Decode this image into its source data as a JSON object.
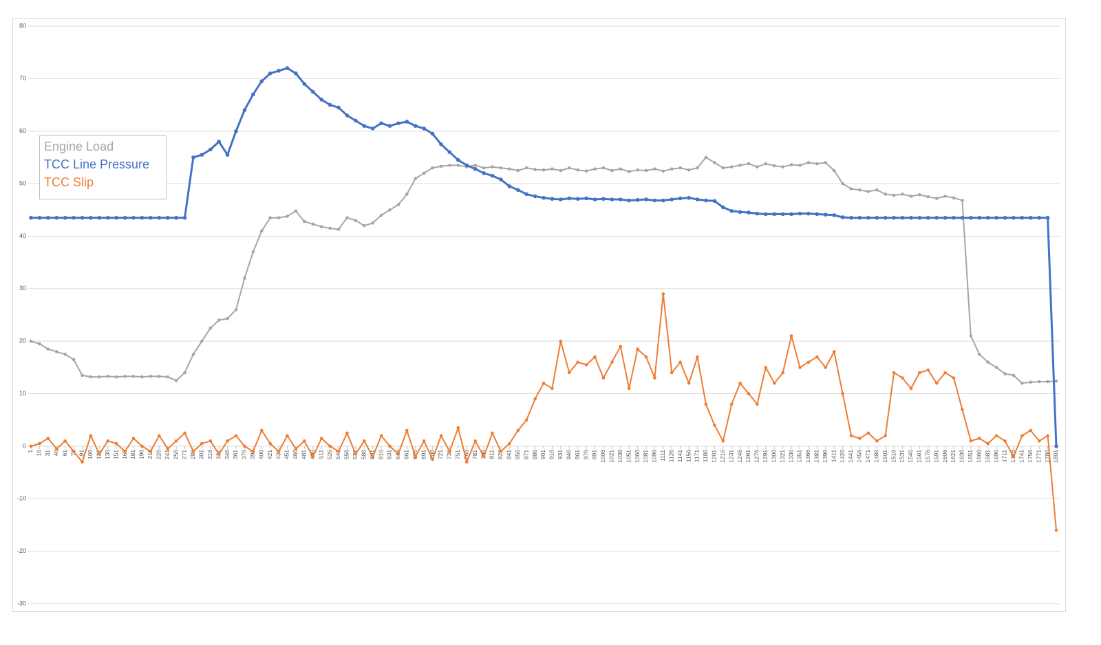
{
  "chart_data": {
    "type": "line",
    "x": [
      1,
      16,
      31,
      46,
      61,
      76,
      91,
      106,
      121,
      136,
      151,
      166,
      181,
      196,
      211,
      226,
      241,
      256,
      271,
      286,
      301,
      316,
      331,
      346,
      361,
      376,
      391,
      406,
      421,
      436,
      451,
      466,
      481,
      496,
      511,
      526,
      541,
      556,
      571,
      586,
      601,
      616,
      631,
      646,
      661,
      676,
      691,
      706,
      721,
      736,
      751,
      766,
      781,
      796,
      811,
      826,
      841,
      856,
      871,
      886,
      901,
      916,
      931,
      946,
      961,
      976,
      991,
      1006,
      1021,
      1036,
      1051,
      1066,
      1081,
      1096,
      1111,
      1126,
      1141,
      1156,
      1171,
      1186,
      1201,
      1216,
      1231,
      1246,
      1261,
      1276,
      1291,
      1306,
      1321,
      1336,
      1351,
      1366,
      1381,
      1396,
      1411,
      1426,
      1441,
      1456,
      1471,
      1486,
      1501,
      1516,
      1531,
      1546,
      1561,
      1576,
      1591,
      1606,
      1621,
      1636,
      1651,
      1666,
      1681,
      1696,
      1711,
      1726,
      1741,
      1756,
      1771,
      1786,
      1801
    ],
    "xticks": [
      1,
      16,
      31,
      46,
      61,
      76,
      91,
      106,
      121,
      136,
      151,
      166,
      181,
      196,
      211,
      226,
      241,
      256,
      271,
      286,
      301,
      316,
      331,
      346,
      361,
      376,
      391,
      406,
      421,
      436,
      451,
      466,
      481,
      496,
      511,
      526,
      541,
      556,
      571,
      586,
      601,
      616,
      631,
      646,
      661,
      676,
      691,
      706,
      721,
      736,
      751,
      766,
      781,
      796,
      811,
      826,
      841,
      856,
      871,
      886,
      901,
      916,
      931,
      946,
      961,
      976,
      991,
      1006,
      1021,
      1036,
      1051,
      1066,
      1081,
      1096,
      1111,
      1126,
      1141,
      1156,
      1171,
      1186,
      1201,
      1216,
      1231,
      1246,
      1261,
      1276,
      1291,
      1306,
      1321,
      1336,
      1351,
      1366,
      1381,
      1396,
      1411,
      1426,
      1441,
      1456,
      1471,
      1486,
      1501,
      1516,
      1531,
      1546,
      1561,
      1576,
      1591,
      1606,
      1621,
      1636,
      1651,
      1666,
      1681,
      1696,
      1711,
      1726,
      1741,
      1756,
      1771,
      1786,
      1801
    ],
    "xlim": [
      1,
      1801
    ],
    "ylim": [
      -30,
      80
    ],
    "yticks": [
      -30,
      -20,
      -10,
      0,
      10,
      20,
      30,
      40,
      50,
      60,
      70,
      80
    ],
    "grid": true,
    "legend": "upper left",
    "series": [
      {
        "name": "Engine Load",
        "color": "#a5a5a5",
        "values": [
          20,
          19.5,
          18.5,
          18,
          17.5,
          16.5,
          13.5,
          13.2,
          13.2,
          13.3,
          13.2,
          13.3,
          13.3,
          13.2,
          13.3,
          13.3,
          13.2,
          12.5,
          14,
          17.5,
          20,
          22.5,
          24,
          24.3,
          26,
          32,
          37,
          41,
          43.5,
          43.5,
          43.8,
          44.8,
          42.8,
          42.3,
          41.8,
          41.5,
          41.3,
          43.5,
          43,
          42,
          42.5,
          44,
          45,
          46,
          48,
          51,
          52,
          53,
          53.3,
          53.5,
          53.5,
          53.2,
          53.5,
          53,
          53.2,
          53,
          52.8,
          52.5,
          53,
          52.7,
          52.6,
          52.8,
          52.5,
          53,
          52.6,
          52.4,
          52.8,
          53,
          52.5,
          52.8,
          52.3,
          52.6,
          52.5,
          52.8,
          52.4,
          52.8,
          53,
          52.6,
          53,
          55,
          54,
          53,
          53.2,
          53.5,
          53.8,
          53.2,
          53.8,
          53.4,
          53.2,
          53.6,
          53.5,
          54,
          53.8,
          54,
          52.5,
          50,
          49,
          48.8,
          48.5,
          48.8,
          48,
          47.8,
          48,
          47.6,
          47.9,
          47.5,
          47.2,
          47.6,
          47.3,
          46.8,
          21,
          17.5,
          16,
          15,
          13.8,
          13.5,
          12,
          12.2,
          12.3,
          12.3,
          12.4
        ]
      },
      {
        "name": "TCC Line Pressure",
        "color": "#4472c4",
        "values": [
          43.5,
          43.5,
          43.5,
          43.5,
          43.5,
          43.5,
          43.5,
          43.5,
          43.5,
          43.5,
          43.5,
          43.5,
          43.5,
          43.5,
          43.5,
          43.5,
          43.5,
          43.5,
          43.5,
          55,
          55.5,
          56.5,
          58,
          55.5,
          60,
          64,
          67,
          69.5,
          71,
          71.5,
          72,
          71,
          69,
          67.5,
          66,
          65,
          64.5,
          63,
          62,
          61,
          60.5,
          61.5,
          61,
          61.5,
          61.8,
          61,
          60.5,
          59.5,
          57.5,
          56,
          54.5,
          53.5,
          52.8,
          52,
          51.5,
          50.8,
          49.5,
          48.8,
          48,
          47.6,
          47.3,
          47.1,
          47,
          47.2,
          47.1,
          47.2,
          47,
          47.1,
          47,
          47,
          46.8,
          46.9,
          47,
          46.8,
          46.8,
          47,
          47.2,
          47.3,
          47,
          46.8,
          46.7,
          45.5,
          44.8,
          44.6,
          44.5,
          44.3,
          44.2,
          44.2,
          44.2,
          44.2,
          44.3,
          44.3,
          44.2,
          44.1,
          44,
          43.6,
          43.5,
          43.5,
          43.5,
          43.5,
          43.5,
          43.5,
          43.5,
          43.5,
          43.5,
          43.5,
          43.5,
          43.5,
          43.5,
          43.5,
          43.5,
          43.5,
          43.5,
          43.5,
          43.5,
          43.5,
          43.5,
          43.5,
          43.5,
          43.5,
          0
        ]
      },
      {
        "name": "TCC Slip",
        "color": "#ed7d31",
        "values": [
          0,
          0.5,
          1.5,
          -0.5,
          1,
          -1,
          -3,
          2,
          -1.5,
          1,
          0.5,
          -1,
          1.5,
          0,
          -1,
          2,
          -0.5,
          1,
          2.5,
          -1,
          0.5,
          1,
          -1.5,
          1,
          2,
          0,
          -1,
          3,
          0.5,
          -1,
          2,
          -0.5,
          1,
          -2,
          1.5,
          0,
          -1,
          2.5,
          -1.5,
          1,
          -2,
          2,
          0,
          -1.5,
          3,
          -2,
          1,
          -2.5,
          2,
          -1,
          3.5,
          -3,
          1,
          -2,
          2.5,
          -1,
          0.5,
          3,
          5,
          9,
          12,
          11,
          20,
          14,
          16,
          15.5,
          17,
          13,
          16,
          19,
          11,
          18.5,
          17,
          13,
          29,
          14,
          16,
          12,
          17,
          8,
          4,
          1,
          8,
          12,
          10,
          8,
          15,
          12,
          14,
          21,
          15,
          16,
          17,
          15,
          18,
          10,
          2,
          1.5,
          2.5,
          1,
          2,
          14,
          13,
          11,
          14,
          14.5,
          12,
          14,
          13,
          7,
          1,
          1.5,
          0.5,
          2,
          1,
          -2,
          2,
          3,
          1,
          2,
          -16
        ]
      }
    ]
  }
}
